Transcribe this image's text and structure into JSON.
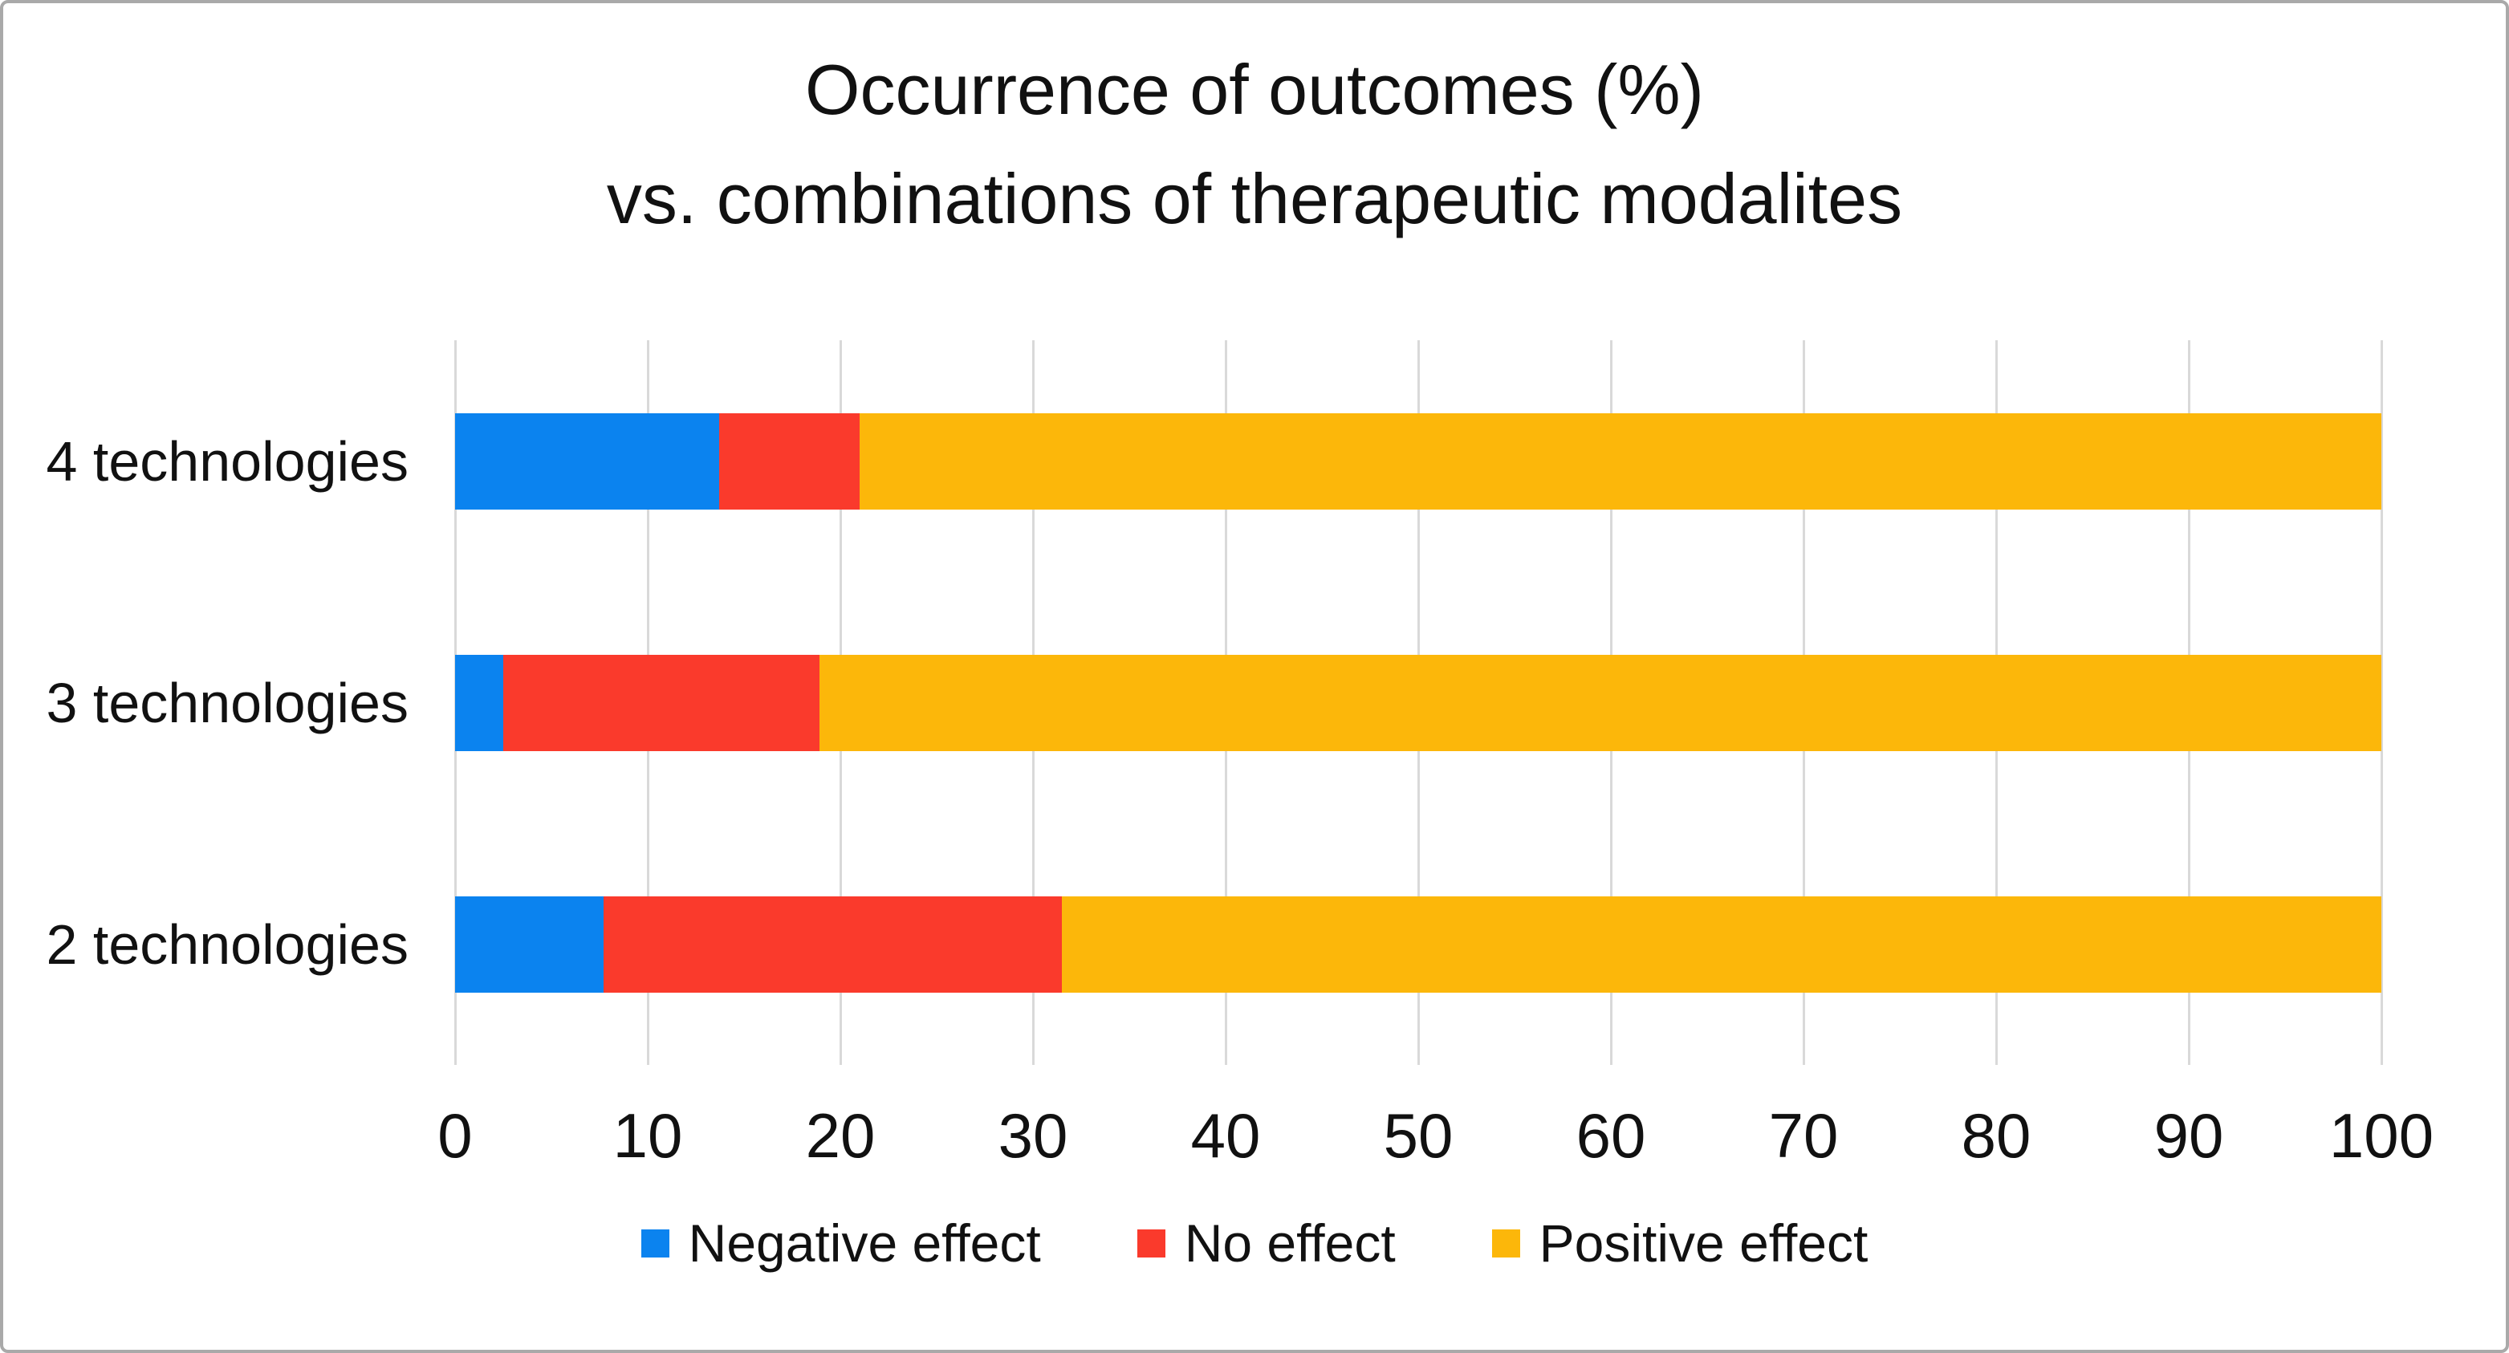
{
  "chart_data": {
    "type": "bar",
    "orientation": "horizontal",
    "stacked": true,
    "title_lines": [
      "Occurrence of outcomes (%)",
      "vs. combinations of therapeutic modalites"
    ],
    "categories": [
      "4 technologies",
      "3 technologies",
      "2 technologies"
    ],
    "series": [
      {
        "name": "Negative effect",
        "color": "#0b83ef",
        "values": [
          13.7,
          2.5,
          7.7
        ]
      },
      {
        "name": "No effect",
        "color": "#fa3a2c",
        "values": [
          7.3,
          16.4,
          23.8
        ]
      },
      {
        "name": "Positive effect",
        "color": "#fcb70a",
        "values": [
          79.0,
          81.1,
          68.5
        ]
      }
    ],
    "xlim": [
      0,
      100
    ],
    "xticks": [
      0,
      10,
      20,
      30,
      40,
      50,
      60,
      70,
      80,
      90,
      100
    ],
    "grid": "vertical",
    "gridline_color": "#d9d9d9",
    "legend_position": "bottom",
    "background_color": "#ffffff",
    "border_color": "#a9a9a9"
  }
}
